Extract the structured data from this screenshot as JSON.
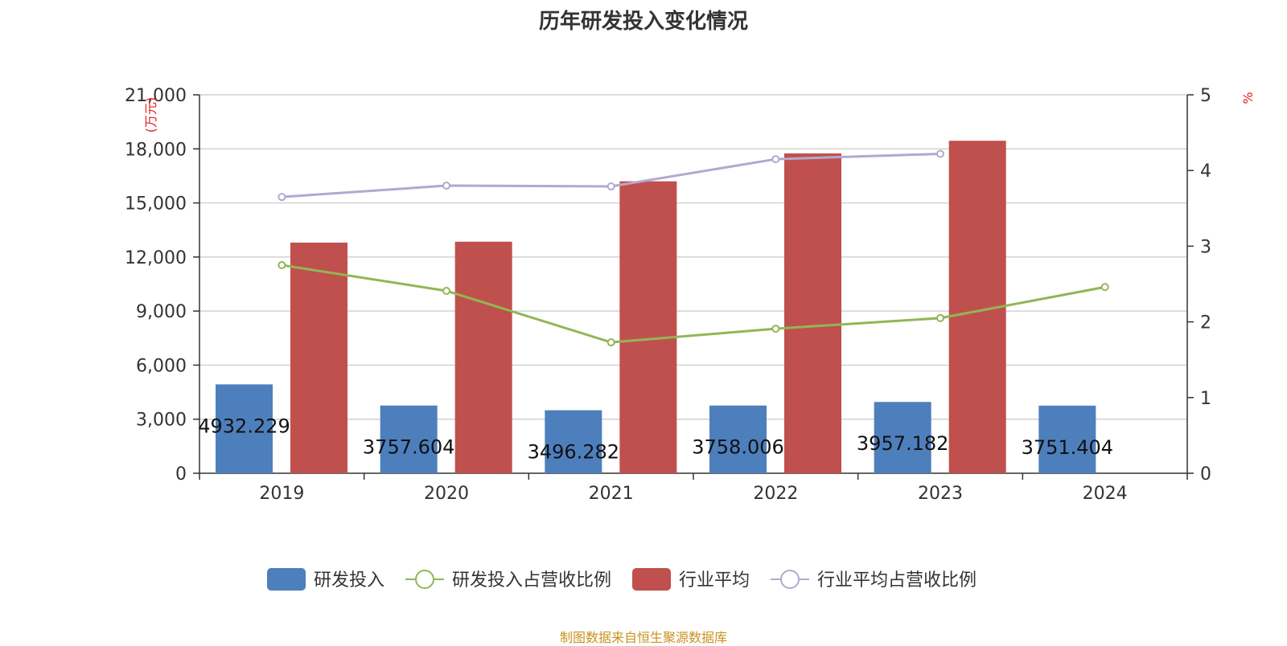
{
  "chart_data": {
    "type": "bar",
    "title": "历年研发投入变化情况",
    "categories": [
      "2019",
      "2020",
      "2021",
      "2022",
      "2023",
      "2024"
    ],
    "left_axis": {
      "unit": "(万元)",
      "ylim": [
        0,
        21000
      ],
      "ticks": [
        0,
        3000,
        6000,
        9000,
        12000,
        15000,
        18000,
        21000
      ],
      "tick_labels": [
        "0",
        "3,000",
        "6,000",
        "9,000",
        "12,000",
        "15,000",
        "18,000",
        "21,000"
      ]
    },
    "right_axis": {
      "unit": "%",
      "ylim": [
        0,
        5
      ],
      "ticks": [
        0,
        1,
        2,
        3,
        4,
        5
      ],
      "tick_labels": [
        "0",
        "1",
        "2",
        "3",
        "4",
        "5"
      ]
    },
    "grid": true,
    "legend_position": "bottom",
    "series": [
      {
        "name": "研发投入",
        "type": "bar",
        "axis": "left",
        "color": "#4e7fbd",
        "values": [
          4932.229,
          3757.604,
          3496.282,
          3758.006,
          3957.182,
          3751.404
        ],
        "value_labels": [
          "4932.229",
          "3757.604",
          "3496.282",
          "3758.006",
          "3957.182",
          "3751.404"
        ]
      },
      {
        "name": "研发投入占营收比例",
        "type": "line",
        "axis": "right",
        "color": "#92b655",
        "values": [
          2.75,
          2.41,
          1.73,
          1.91,
          2.05,
          2.46
        ]
      },
      {
        "name": "行业平均",
        "type": "bar",
        "axis": "left",
        "color": "#c0504d",
        "values": [
          12800,
          12850,
          16200,
          17750,
          18450,
          null
        ]
      },
      {
        "name": "行业平均占营收比例",
        "type": "line",
        "axis": "right",
        "color": "#b5a7cf",
        "values": [
          3.65,
          3.8,
          3.79,
          4.15,
          4.22,
          null
        ]
      }
    ],
    "source": "制图数据来自恒生聚源数据库"
  }
}
